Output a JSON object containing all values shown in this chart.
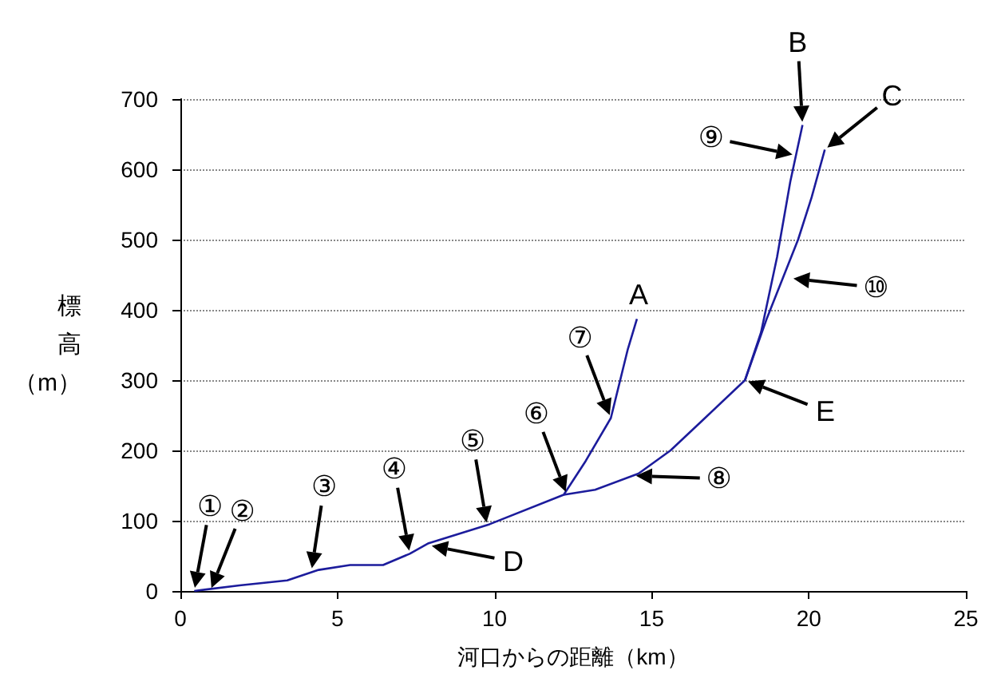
{
  "chart_data": {
    "type": "line",
    "xlabel": "河口からの距離（km）",
    "ylabel": "標高（m）",
    "xlim": [
      0,
      25
    ],
    "xticks": [
      0,
      5,
      10,
      15,
      20,
      25
    ],
    "ylim": [
      0,
      700
    ],
    "yticks": [
      0,
      100,
      200,
      300,
      400,
      500,
      600,
      700
    ],
    "grid": "y",
    "marker": "none",
    "line_style": "solid",
    "series": [
      {
        "color": "#1c1c9c",
        "x": [
          0.44,
          1.88,
          3.4,
          4.4,
          5.4,
          6.45,
          7.3,
          7.9,
          9.84,
          12.2,
          12.9,
          13.7,
          14.24,
          14.53
        ],
        "values": [
          0,
          8,
          15,
          30,
          37,
          37,
          53,
          68,
          95,
          137,
          185,
          246,
          344,
          387
        ]
      },
      {
        "color": "#1c1c9c",
        "x": [
          12.2,
          13.2,
          14.58,
          15.6,
          16.6,
          17.97,
          18.48,
          18.99,
          19.41,
          19.8
        ],
        "values": [
          137,
          144,
          167,
          200,
          242,
          300,
          368,
          475,
          582,
          663
        ]
      },
      {
        "color": "#1c1c9c",
        "x": [
          17.97,
          18.65,
          19.66,
          20.09,
          20.51
        ],
        "values": [
          300,
          386,
          500,
          560,
          628
        ]
      }
    ],
    "annotations": [
      {
        "text": "①",
        "x": 0.44,
        "y": 0
      },
      {
        "text": "②",
        "x": 0.95,
        "y": 0
      },
      {
        "text": "③",
        "x": 4.17,
        "y": 28
      },
      {
        "text": "④",
        "x": 7.3,
        "y": 53
      },
      {
        "text": "⑤",
        "x": 9.76,
        "y": 93
      },
      {
        "text": "⑥",
        "x": 12.3,
        "y": 137
      },
      {
        "text": "⑦",
        "x": 13.7,
        "y": 246
      },
      {
        "text": "A",
        "x": 14.53,
        "y": 387
      },
      {
        "text": "D",
        "x": 7.9,
        "y": 65
      },
      {
        "text": "⑧",
        "x": 14.4,
        "y": 164
      },
      {
        "text": "E",
        "x": 17.97,
        "y": 300
      },
      {
        "text": "⑨",
        "x": 19.58,
        "y": 620
      },
      {
        "text": "B",
        "x": 19.8,
        "y": 663
      },
      {
        "text": "C",
        "x": 20.51,
        "y": 628
      },
      {
        "text": "⑩",
        "x": 19.41,
        "y": 445
      }
    ]
  }
}
